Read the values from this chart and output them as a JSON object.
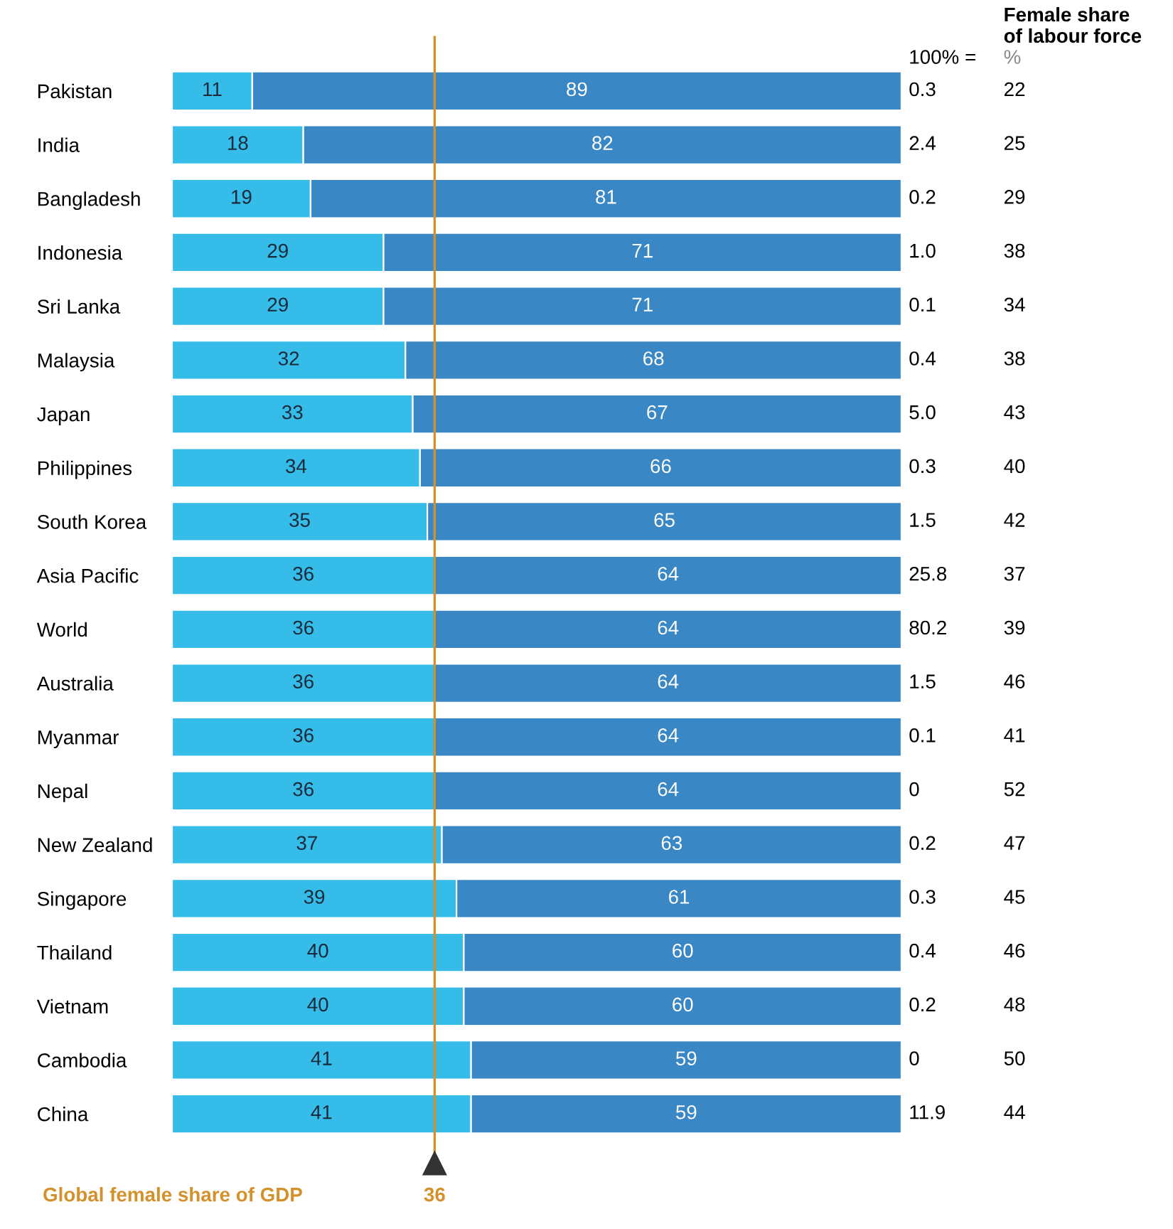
{
  "chart_data": {
    "type": "bar",
    "orientation": "horizontal",
    "stacked": true,
    "data_labels": true,
    "grid": false,
    "legend": false,
    "tick_labels": "y",
    "categories": [
      "Pakistan",
      "India",
      "Bangladesh",
      "Indonesia",
      "Sri Lanka",
      "Malaysia",
      "Japan",
      "Philippines",
      "South Korea",
      "Asia Pacific",
      "World",
      "Australia",
      "Myanmar",
      "Nepal",
      "New Zealand",
      "Singapore",
      "Thailand",
      "Vietnam",
      "Cambodia",
      "China"
    ],
    "xlim": [
      0,
      100
    ],
    "series": [
      {
        "color": "#35bce9",
        "values": [
          11,
          18,
          19,
          29,
          29,
          32,
          33,
          34,
          35,
          36,
          36,
          36,
          36,
          36,
          37,
          39,
          40,
          40,
          41,
          41
        ]
      },
      {
        "color": "#3a87c6",
        "values": [
          89,
          82,
          81,
          71,
          71,
          68,
          67,
          66,
          65,
          64,
          64,
          64,
          64,
          64,
          63,
          61,
          60,
          60,
          59,
          59
        ]
      }
    ],
    "ref_lines": [
      {
        "axis": "x",
        "value": 36,
        "label": "36",
        "color": "#d4902a"
      }
    ],
    "annotations": [
      "100% =",
      "Female share\nof labour force",
      "%",
      "Global female share of GDP",
      "0.3",
      "22",
      "2.4",
      "25",
      "0.2",
      "29",
      "1.0",
      "38",
      "0.1",
      "34",
      "0.4",
      "38",
      "5.0",
      "43",
      "0.3",
      "40",
      "1.5",
      "42",
      "25.8",
      "37",
      "80.2",
      "39",
      "1.5",
      "46",
      "0.1",
      "41",
      "0",
      "52",
      "0.2",
      "47",
      "0.3",
      "45",
      "0.4",
      "46",
      "0.2",
      "48",
      "0",
      "50",
      "11.9",
      "44"
    ]
  }
}
